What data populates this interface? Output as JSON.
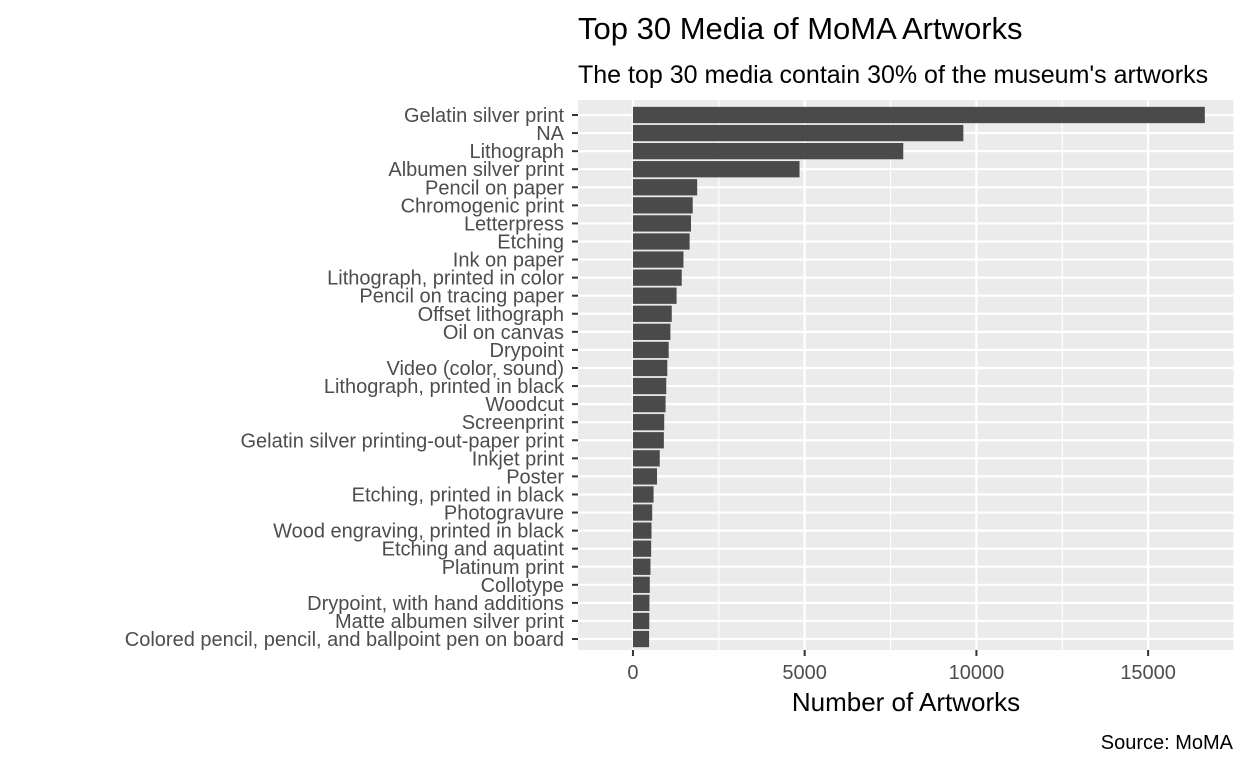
{
  "chart_data": {
    "type": "bar",
    "orientation": "horizontal",
    "title": "Top 30 Media of MoMA Artworks",
    "subtitle": "The top 30 media contain 30% of the museum's artworks",
    "xlabel": "Number of Artworks",
    "ylabel": "",
    "caption": "Source: MoMA",
    "xlim": [
      -1600,
      17500
    ],
    "x_ticks": [
      0,
      5000,
      10000,
      15000
    ],
    "x_tick_labels": [
      "0",
      "5000",
      "10000",
      "15000"
    ],
    "grid": true,
    "legend": "none",
    "colors": {
      "bar": "#4a4a4a",
      "panel": "#ebebeb",
      "grid": "#ffffff"
    },
    "categories": [
      "Gelatin silver print",
      "NA",
      "Lithograph",
      "Albumen silver print",
      "Pencil on paper",
      "Chromogenic print",
      "Letterpress",
      "Etching",
      "Ink on paper",
      "Lithograph, printed in color",
      "Pencil on tracing paper",
      "Offset lithograph",
      "Oil on canvas",
      "Drypoint",
      "Video (color, sound)",
      "Lithograph, printed in black",
      "Woodcut",
      "Screenprint",
      "Gelatin silver printing-out-paper print",
      "Inkjet print",
      "Poster",
      "Etching, printed in black",
      "Photogravure",
      "Wood engraving, printed in black",
      "Etching and aquatint",
      "Platinum print",
      "Collotype",
      "Drypoint, with hand additions",
      "Matte albumen silver print",
      "Colored pencil, pencil, and ballpoint pen on board"
    ],
    "values": [
      16650,
      9620,
      7870,
      4850,
      1870,
      1740,
      1690,
      1650,
      1470,
      1420,
      1270,
      1130,
      1090,
      1040,
      1000,
      970,
      950,
      910,
      900,
      780,
      700,
      600,
      560,
      540,
      530,
      510,
      490,
      480,
      475,
      470
    ]
  }
}
